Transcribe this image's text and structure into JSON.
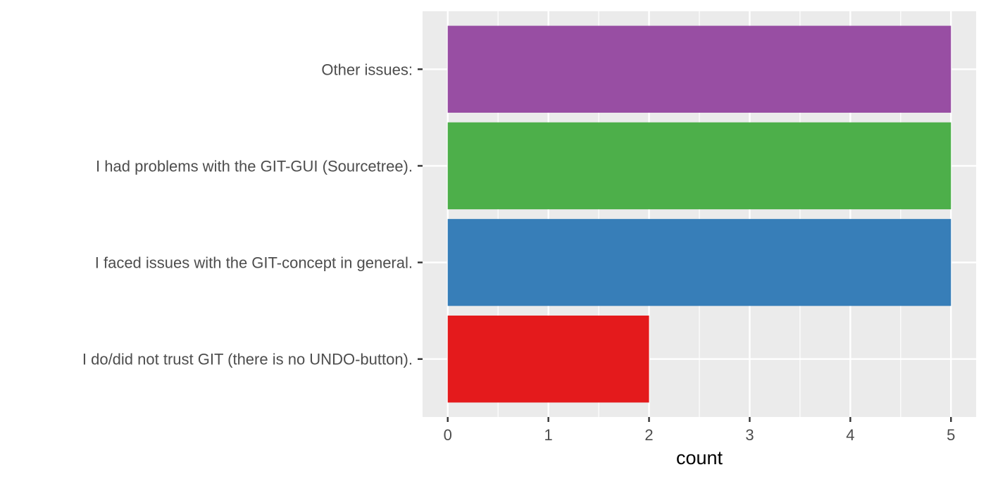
{
  "chart_data": {
    "type": "bar",
    "orientation": "horizontal",
    "categories": [
      "I do/did not trust GIT (there is no UNDO-button).",
      "I faced issues with the GIT-concept in general.",
      "I had problems with the GIT-GUI (Sourcetree).",
      "Other issues:"
    ],
    "values": [
      2,
      5,
      5,
      5
    ],
    "bar_colors": [
      "#e41a1c",
      "#377eb8",
      "#4daf4a",
      "#984ea3"
    ],
    "xlabel": "count",
    "ylabel": "",
    "xticks": [
      0,
      1,
      2,
      3,
      4,
      5
    ],
    "xlim": [
      -0.25,
      5.25
    ],
    "grid": true,
    "panel_background": "#ebebeb",
    "legend": "none"
  }
}
